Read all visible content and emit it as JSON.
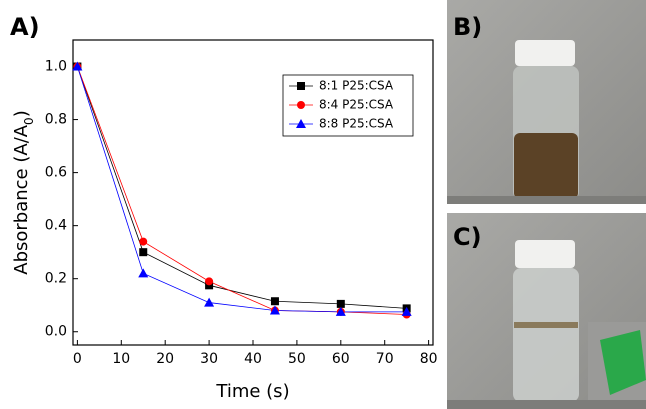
{
  "panel_labels": [
    "A)",
    "B)",
    "C)"
  ],
  "chart_data": {
    "type": "line",
    "xlabel": "Time (s)",
    "ylabel_parts": [
      "Absorbance (A/A",
      "0",
      ")"
    ],
    "xlim": [
      -1,
      81
    ],
    "ylim": [
      -0.05,
      1.1
    ],
    "xticks": [
      0,
      10,
      20,
      30,
      40,
      50,
      60,
      70,
      80
    ],
    "yticks": [
      {
        "value": 0,
        "label": "0.0"
      },
      {
        "value": 0.2,
        "label": "0.2"
      },
      {
        "value": 0.4,
        "label": "0.4"
      },
      {
        "value": 0.6,
        "label": "0.6"
      },
      {
        "value": 0.8,
        "label": "0.8"
      },
      {
        "value": 1,
        "label": "1.0"
      }
    ],
    "x": [
      0,
      15,
      30,
      45,
      60,
      75
    ],
    "series": [
      {
        "name": "8:1 P25:CSA",
        "color": "#000000",
        "marker": "square",
        "values": [
          1.0,
          0.3,
          0.175,
          0.115,
          0.105,
          0.088
        ]
      },
      {
        "name": "8:4 P25:CSA",
        "color": "#ff0000",
        "marker": "circle",
        "values": [
          1.0,
          0.34,
          0.19,
          0.08,
          0.075,
          0.065
        ]
      },
      {
        "name": "8:8 P25:CSA",
        "color": "#0000ff",
        "marker": "triangle",
        "values": [
          1.0,
          0.22,
          0.11,
          0.08,
          0.075,
          0.075
        ]
      }
    ],
    "legend": "upper-right"
  }
}
